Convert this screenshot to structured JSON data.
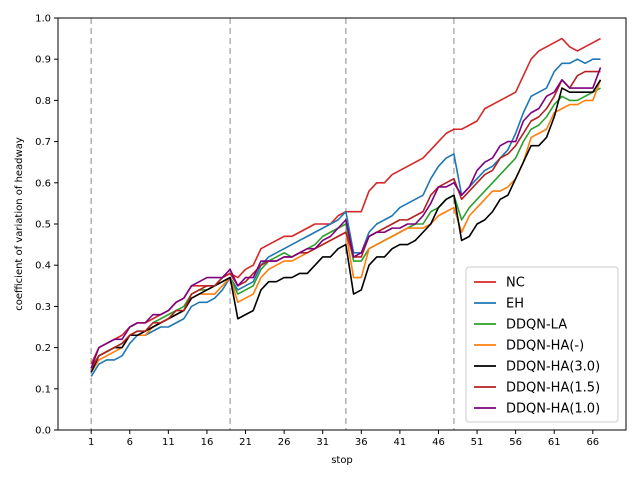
{
  "chart_data": {
    "type": "line",
    "title": "",
    "xlabel": "stop",
    "ylabel": "coefficient of variation of headway",
    "xlim": [
      -3.3,
      70.3
    ],
    "ylim": [
      0.0,
      1.0
    ],
    "x_ticks": [
      1,
      6,
      11,
      16,
      21,
      26,
      31,
      36,
      41,
      46,
      51,
      56,
      61,
      66
    ],
    "y_ticks": [
      0.0,
      0.1,
      0.2,
      0.3,
      0.4,
      0.5,
      0.6,
      0.7,
      0.8,
      0.9,
      1.0
    ],
    "vlines": [
      1,
      19,
      34,
      48
    ],
    "legend_position": "lower-right",
    "grid": false,
    "series": [
      {
        "name": "NC",
        "color": "#d62728",
        "values": [
          0.16,
          0.2,
          0.21,
          0.22,
          0.23,
          0.25,
          0.26,
          0.26,
          0.27,
          0.28,
          0.29,
          0.31,
          0.32,
          0.35,
          0.35,
          0.35,
          0.35,
          0.37,
          0.38,
          0.37,
          0.39,
          0.4,
          0.44,
          0.45,
          0.46,
          0.47,
          0.47,
          0.48,
          0.49,
          0.5,
          0.5,
          0.5,
          0.52,
          0.53,
          0.53,
          0.53,
          0.58,
          0.6,
          0.6,
          0.62,
          0.63,
          0.64,
          0.65,
          0.66,
          0.68,
          0.7,
          0.72,
          0.73,
          0.73,
          0.74,
          0.75,
          0.78,
          0.79,
          0.8,
          0.81,
          0.82,
          0.86,
          0.9,
          0.92,
          0.93,
          0.94,
          0.95,
          0.93,
          0.92,
          0.93,
          0.94,
          0.95
        ]
      },
      {
        "name": "EH",
        "color": "#1f77b4",
        "values": [
          0.13,
          0.16,
          0.17,
          0.17,
          0.18,
          0.21,
          0.23,
          0.23,
          0.24,
          0.25,
          0.25,
          0.26,
          0.27,
          0.3,
          0.31,
          0.31,
          0.32,
          0.34,
          0.37,
          0.34,
          0.35,
          0.36,
          0.4,
          0.42,
          0.43,
          0.44,
          0.45,
          0.46,
          0.47,
          0.48,
          0.49,
          0.5,
          0.51,
          0.53,
          0.43,
          0.43,
          0.48,
          0.5,
          0.51,
          0.52,
          0.54,
          0.55,
          0.56,
          0.57,
          0.61,
          0.64,
          0.66,
          0.67,
          0.57,
          0.59,
          0.61,
          0.63,
          0.64,
          0.66,
          0.68,
          0.72,
          0.77,
          0.81,
          0.82,
          0.83,
          0.87,
          0.89,
          0.89,
          0.9,
          0.89,
          0.9,
          0.9
        ]
      },
      {
        "name": "DDQN-LA",
        "color": "#2ca02c",
        "values": [
          0.15,
          0.18,
          0.19,
          0.2,
          0.21,
          0.23,
          0.24,
          0.24,
          0.26,
          0.27,
          0.28,
          0.29,
          0.3,
          0.33,
          0.34,
          0.34,
          0.35,
          0.36,
          0.37,
          0.33,
          0.34,
          0.35,
          0.39,
          0.41,
          0.42,
          0.43,
          0.42,
          0.43,
          0.44,
          0.45,
          0.47,
          0.48,
          0.49,
          0.5,
          0.41,
          0.41,
          0.44,
          0.45,
          0.46,
          0.47,
          0.48,
          0.49,
          0.5,
          0.5,
          0.53,
          0.54,
          0.56,
          0.57,
          0.51,
          0.54,
          0.56,
          0.58,
          0.6,
          0.62,
          0.64,
          0.66,
          0.7,
          0.73,
          0.74,
          0.76,
          0.79,
          0.81,
          0.8,
          0.8,
          0.81,
          0.82,
          0.83
        ]
      },
      {
        "name": "DDQN-HA(-)",
        "color": "#ff7f0e",
        "values": [
          0.14,
          0.17,
          0.18,
          0.19,
          0.2,
          0.23,
          0.23,
          0.23,
          0.25,
          0.26,
          0.27,
          0.28,
          0.29,
          0.32,
          0.33,
          0.33,
          0.33,
          0.35,
          0.37,
          0.31,
          0.32,
          0.33,
          0.37,
          0.39,
          0.4,
          0.41,
          0.41,
          0.42,
          0.43,
          0.44,
          0.45,
          0.46,
          0.47,
          0.48,
          0.37,
          0.37,
          0.44,
          0.45,
          0.46,
          0.47,
          0.48,
          0.49,
          0.49,
          0.49,
          0.5,
          0.52,
          0.53,
          0.54,
          0.48,
          0.52,
          0.54,
          0.56,
          0.58,
          0.58,
          0.59,
          0.61,
          0.65,
          0.71,
          0.72,
          0.73,
          0.77,
          0.78,
          0.79,
          0.79,
          0.8,
          0.8,
          0.85
        ]
      },
      {
        "name": "DDQN-HA(3.0)",
        "color": "#000000",
        "values": [
          0.14,
          0.18,
          0.19,
          0.2,
          0.2,
          0.23,
          0.23,
          0.24,
          0.25,
          0.26,
          0.27,
          0.28,
          0.29,
          0.32,
          0.33,
          0.34,
          0.35,
          0.36,
          0.37,
          0.27,
          0.28,
          0.29,
          0.34,
          0.36,
          0.36,
          0.37,
          0.37,
          0.38,
          0.38,
          0.4,
          0.42,
          0.42,
          0.44,
          0.45,
          0.33,
          0.34,
          0.4,
          0.42,
          0.42,
          0.44,
          0.45,
          0.45,
          0.46,
          0.48,
          0.5,
          0.54,
          0.56,
          0.57,
          0.46,
          0.47,
          0.5,
          0.51,
          0.53,
          0.56,
          0.57,
          0.61,
          0.65,
          0.69,
          0.69,
          0.71,
          0.76,
          0.83,
          0.82,
          0.82,
          0.82,
          0.82,
          0.85
        ]
      },
      {
        "name": "DDQN-HA(1.5)",
        "color": "#b22222",
        "values": [
          0.15,
          0.18,
          0.19,
          0.2,
          0.21,
          0.23,
          0.24,
          0.24,
          0.26,
          0.26,
          0.27,
          0.29,
          0.29,
          0.33,
          0.34,
          0.35,
          0.35,
          0.37,
          0.38,
          0.35,
          0.36,
          0.38,
          0.4,
          0.41,
          0.41,
          0.42,
          0.42,
          0.43,
          0.43,
          0.44,
          0.45,
          0.46,
          0.47,
          0.48,
          0.42,
          0.42,
          0.47,
          0.48,
          0.49,
          0.5,
          0.51,
          0.51,
          0.52,
          0.53,
          0.57,
          0.59,
          0.6,
          0.61,
          0.56,
          0.58,
          0.6,
          0.62,
          0.63,
          0.66,
          0.67,
          0.69,
          0.72,
          0.75,
          0.76,
          0.78,
          0.81,
          0.85,
          0.83,
          0.86,
          0.87,
          0.87,
          0.87
        ]
      },
      {
        "name": "DDQN-HA(1.0)",
        "color": "#800080",
        "values": [
          0.15,
          0.2,
          0.21,
          0.22,
          0.22,
          0.25,
          0.26,
          0.26,
          0.28,
          0.28,
          0.29,
          0.31,
          0.32,
          0.35,
          0.36,
          0.37,
          0.37,
          0.37,
          0.39,
          0.35,
          0.37,
          0.37,
          0.41,
          0.41,
          0.41,
          0.42,
          0.42,
          0.43,
          0.44,
          0.44,
          0.46,
          0.47,
          0.49,
          0.51,
          0.42,
          0.43,
          0.47,
          0.48,
          0.48,
          0.49,
          0.49,
          0.5,
          0.5,
          0.52,
          0.55,
          0.59,
          0.59,
          0.6,
          0.57,
          0.59,
          0.63,
          0.65,
          0.66,
          0.69,
          0.7,
          0.7,
          0.75,
          0.77,
          0.78,
          0.81,
          0.82,
          0.85,
          0.83,
          0.83,
          0.83,
          0.83,
          0.88
        ]
      }
    ]
  }
}
